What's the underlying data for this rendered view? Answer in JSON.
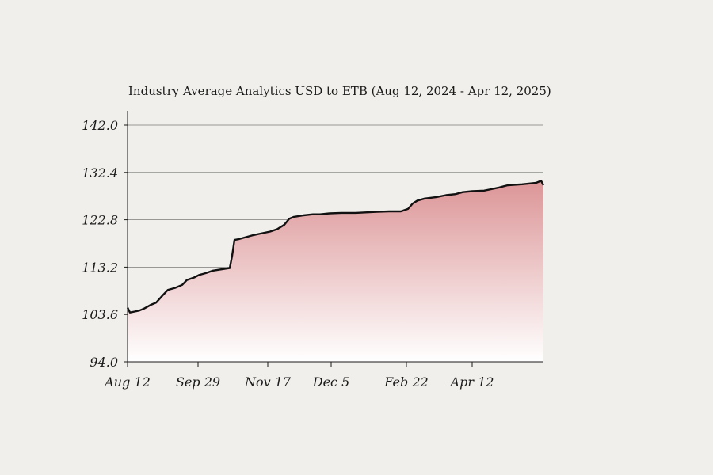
{
  "chart_data": {
    "type": "area",
    "title": "Industry Average Analytics  USD to ETB (Aug 12, 2024 - Apr 12, 2025)",
    "xlabel": "",
    "ylabel": "",
    "ylim": [
      94.0,
      142.0
    ],
    "y_ticks": [
      "142.0",
      "132.4",
      "122.8",
      "113.2",
      "103.6",
      "94.0"
    ],
    "x_tick_labels": [
      "Aug 12",
      "Sep 29",
      "Nov 17",
      "Dec 5",
      "Feb 22",
      "Apr 12"
    ],
    "grid": "horizontal",
    "colors": {
      "line": "#111111",
      "fill_top": "#dc9597",
      "fill_bottom": "#ffffff",
      "grid": "#7a7a7a",
      "background": "#f0efeb"
    },
    "series": [
      {
        "values": [
          [
            0,
            105.0
          ],
          [
            1,
            104.0
          ],
          [
            3,
            104.2
          ],
          [
            5,
            104.4
          ],
          [
            7,
            104.8
          ],
          [
            10,
            105.6
          ],
          [
            12,
            106.0
          ],
          [
            15,
            107.6
          ],
          [
            17,
            108.6
          ],
          [
            20,
            109.0
          ],
          [
            23,
            109.6
          ],
          [
            25,
            110.6
          ],
          [
            28,
            111.1
          ],
          [
            30,
            111.6
          ],
          [
            33,
            112.0
          ],
          [
            36,
            112.5
          ],
          [
            40,
            112.8
          ],
          [
            43,
            113.0
          ],
          [
            44,
            115.5
          ],
          [
            45,
            118.7
          ],
          [
            47,
            118.9
          ],
          [
            50,
            119.3
          ],
          [
            53,
            119.7
          ],
          [
            56,
            120.0
          ],
          [
            60,
            120.4
          ],
          [
            63,
            120.9
          ],
          [
            66,
            121.8
          ],
          [
            68,
            123.0
          ],
          [
            70,
            123.4
          ],
          [
            74,
            123.7
          ],
          [
            78,
            123.9
          ],
          [
            81,
            123.9
          ],
          [
            85,
            124.1
          ],
          [
            90,
            124.2
          ],
          [
            93,
            124.2
          ],
          [
            96,
            124.2
          ],
          [
            100,
            124.3
          ],
          [
            105,
            124.4
          ],
          [
            110,
            124.5
          ],
          [
            115,
            124.5
          ],
          [
            118,
            125.0
          ],
          [
            120,
            126.1
          ],
          [
            122,
            126.7
          ],
          [
            125,
            127.1
          ],
          [
            130,
            127.4
          ],
          [
            134,
            127.8
          ],
          [
            138,
            128.0
          ],
          [
            141,
            128.4
          ],
          [
            145,
            128.6
          ],
          [
            150,
            128.7
          ],
          [
            153,
            129.0
          ],
          [
            156,
            129.3
          ],
          [
            160,
            129.8
          ],
          [
            166,
            130.0
          ],
          [
            172,
            130.3
          ],
          [
            174,
            130.7
          ],
          [
            175,
            129.8
          ]
        ]
      }
    ]
  }
}
